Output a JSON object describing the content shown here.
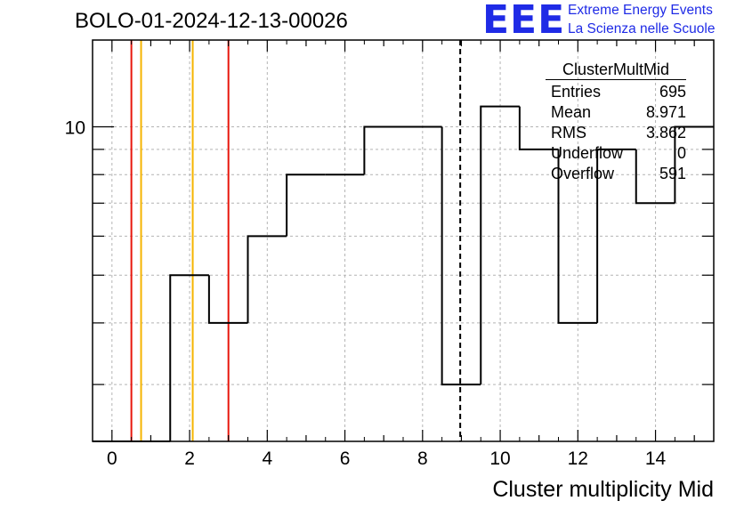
{
  "header": {
    "title": "BOLO-01-2024-12-13-00026"
  },
  "logo": {
    "mark": "EEE",
    "line1": "Extreme Energy Events",
    "line2": "La Scienza nelle Scuole"
  },
  "stats_box": {
    "title": "ClusterMultMid",
    "rows": [
      {
        "label": "Entries",
        "value": "695"
      },
      {
        "label": "Mean",
        "value": "8.971"
      },
      {
        "label": "RMS",
        "value": "3.862"
      },
      {
        "label": "Underflow",
        "value": "0"
      },
      {
        "label": "Overflow",
        "value": "591"
      }
    ]
  },
  "chart_data": {
    "type": "histogram",
    "title": "BOLO-01-2024-12-13-00026",
    "xlabel": "Cluster multiplicity Mid",
    "ylabel": "",
    "y_scale": "log",
    "xlim": [
      -0.5,
      15.5
    ],
    "ylim": [
      2.3,
      15
    ],
    "x_ticks": [
      0,
      2,
      4,
      6,
      8,
      10,
      12,
      14
    ],
    "y_tick_labels": [
      {
        "value": 10,
        "label": "10"
      }
    ],
    "grid": true,
    "bin_width": 1,
    "bin_centers": [
      0,
      1,
      2,
      3,
      4,
      5,
      6,
      7,
      8,
      9,
      10,
      11,
      12,
      13,
      14,
      15
    ],
    "values": [
      0,
      0,
      5,
      4,
      6,
      8,
      8,
      10,
      10,
      3,
      11,
      9,
      4,
      9,
      7,
      10
    ],
    "vertical_lines": [
      {
        "x": 0.5,
        "color": "#e8160c",
        "style": "solid"
      },
      {
        "x": 0.75,
        "color": "#f5b400",
        "style": "solid"
      },
      {
        "x": 2.08,
        "color": "#f5b400",
        "style": "solid"
      },
      {
        "x": 3.0,
        "color": "#e8160c",
        "style": "solid"
      },
      {
        "x": 8.97,
        "color": "#000000",
        "style": "dashed"
      }
    ]
  }
}
